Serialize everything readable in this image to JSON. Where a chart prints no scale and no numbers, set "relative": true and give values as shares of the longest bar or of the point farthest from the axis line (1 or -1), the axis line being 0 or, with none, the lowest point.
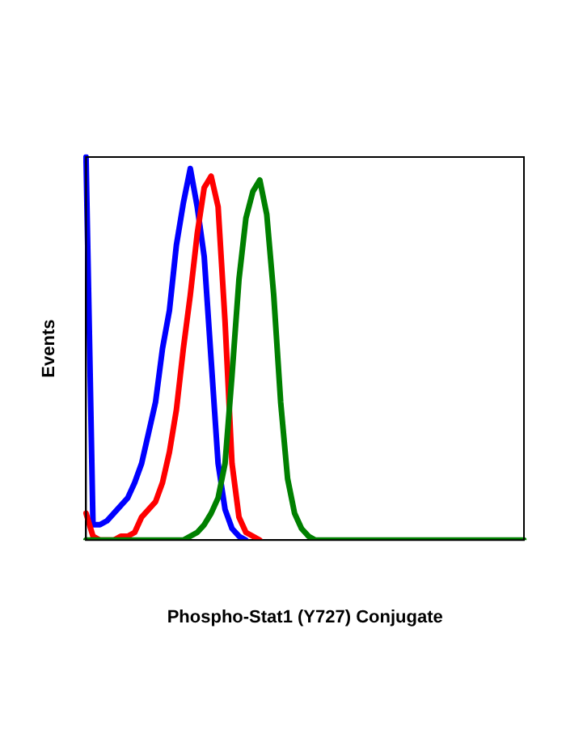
{
  "chart_data": {
    "type": "line",
    "relative": true,
    "xlabel": "Phospho-Stat1 (Y727) Conjugate",
    "ylabel": "Events",
    "grid": false,
    "legend": false,
    "marker": "none",
    "line_style": "solid",
    "categories": [
      null,
      null,
      null,
      null,
      null,
      null,
      null,
      null,
      null,
      null,
      null,
      null,
      null,
      null,
      null,
      null,
      null,
      null,
      null,
      null,
      null,
      null,
      null,
      null,
      null,
      null,
      null,
      null,
      null,
      null,
      null,
      null,
      null,
      null,
      null,
      null,
      null,
      null,
      null,
      null,
      null,
      null,
      null,
      null,
      null,
      null,
      null,
      null,
      null,
      null,
      null,
      null,
      null,
      null,
      null,
      null,
      null,
      null,
      null,
      null,
      null,
      null,
      null,
      null
    ],
    "series": [
      {
        "color": "#0000ff",
        "values": [
          1.0,
          0.04,
          0.04,
          0.05,
          0.07,
          0.09,
          0.11,
          0.15,
          0.2,
          0.28,
          0.36,
          0.5,
          0.6,
          0.77,
          0.88,
          0.97,
          0.87,
          0.74,
          0.47,
          0.2,
          0.08,
          0.03,
          0.01,
          0,
          null,
          null,
          null,
          null,
          null,
          null,
          null,
          null,
          null,
          null,
          null,
          null,
          null,
          null,
          null,
          null,
          null,
          null,
          null,
          null,
          null,
          null,
          null,
          null,
          null,
          null,
          null,
          null,
          null,
          null,
          null,
          null,
          null,
          null,
          null,
          null,
          null,
          null,
          null,
          null
        ]
      },
      {
        "color": "#ff0000",
        "values": [
          0.07,
          0.01,
          0,
          0,
          0,
          0.01,
          0.01,
          0.02,
          0.06,
          0.08,
          0.1,
          0.15,
          0.23,
          0.34,
          0.5,
          0.64,
          0.8,
          0.92,
          0.95,
          0.87,
          0.57,
          0.2,
          0.06,
          0.02,
          0.01,
          0,
          null,
          null,
          null,
          null,
          null,
          null,
          null,
          null,
          null,
          null,
          null,
          null,
          null,
          null,
          null,
          null,
          null,
          null,
          null,
          null,
          null,
          null,
          null,
          null,
          null,
          null,
          null,
          null,
          null,
          null,
          null,
          null,
          null,
          null,
          null,
          null,
          null,
          null
        ]
      },
      {
        "color": "#008000",
        "values": [
          0,
          0,
          0,
          0,
          0,
          0,
          0,
          0,
          0,
          0,
          0,
          0,
          0,
          0,
          0,
          0.01,
          0.02,
          0.04,
          0.07,
          0.11,
          0.2,
          0.43,
          0.68,
          0.84,
          0.91,
          0.94,
          0.85,
          0.64,
          0.36,
          0.16,
          0.07,
          0.03,
          0.01,
          0,
          0,
          0,
          0,
          0,
          0,
          0,
          0,
          0,
          0,
          0,
          0,
          0,
          0,
          0,
          0,
          0,
          0,
          0,
          0,
          0,
          0,
          0,
          0,
          0,
          0,
          0,
          0,
          0,
          0,
          0
        ]
      }
    ]
  }
}
